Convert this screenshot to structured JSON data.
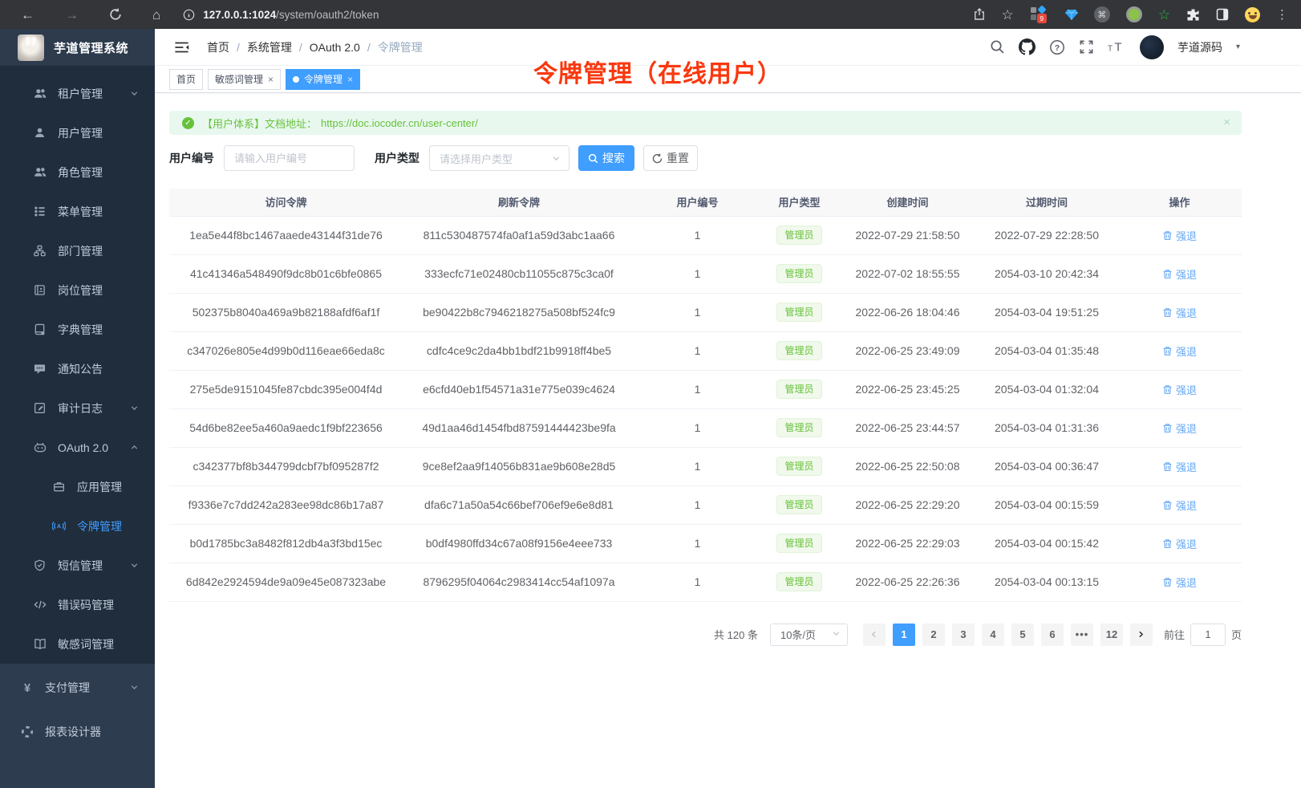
{
  "browser": {
    "url_host": "127.0.0.1:1024",
    "url_path": "/system/oauth2/token",
    "extension_badge": "9"
  },
  "app": {
    "title": "芋道管理系统"
  },
  "header": {
    "breadcrumb": [
      "首页",
      "系统管理",
      "OAuth 2.0",
      "令牌管理"
    ],
    "username": "芋道源码"
  },
  "annotation": {
    "text": "令牌管理（在线用户）",
    "color": "#f9380f"
  },
  "colors": {
    "accent": "#409eff",
    "success": "#67c23a",
    "sidebar_bg": "#1f2d3d",
    "annotation_red": "#f9380f"
  },
  "tabs": [
    {
      "label": "首页",
      "closable": false,
      "active": false
    },
    {
      "label": "敏感词管理",
      "closable": true,
      "active": false
    },
    {
      "label": "令牌管理",
      "closable": true,
      "active": true
    }
  ],
  "sidebar": {
    "main_items": [
      {
        "id": "tenant",
        "icon": "users-icon",
        "label": "租户管理",
        "chevron": "down"
      },
      {
        "id": "user",
        "icon": "user-icon",
        "label": "用户管理"
      },
      {
        "id": "role",
        "icon": "users-icon",
        "label": "角色管理"
      },
      {
        "id": "menu",
        "icon": "menu-tree-icon",
        "label": "菜单管理"
      },
      {
        "id": "dept",
        "icon": "org-chart-icon",
        "label": "部门管理"
      },
      {
        "id": "post",
        "icon": "id-card-icon",
        "label": "岗位管理"
      },
      {
        "id": "dict",
        "icon": "dictionary-icon",
        "label": "字典管理"
      },
      {
        "id": "notice",
        "icon": "comment-icon",
        "label": "通知公告"
      },
      {
        "id": "audit",
        "icon": "edit-log-icon",
        "label": "审计日志",
        "chevron": "down"
      },
      {
        "id": "oauth",
        "icon": "robot-icon",
        "label": "OAuth 2.0",
        "chevron": "up"
      },
      {
        "id": "oauth-app",
        "icon": "briefcase-icon",
        "label": "应用管理",
        "child": true
      },
      {
        "id": "oauth-token",
        "icon": "broadcast-icon",
        "label": "令牌管理",
        "child": true,
        "active": true
      },
      {
        "id": "sms",
        "icon": "shield-check-icon",
        "label": "短信管理",
        "chevron": "down"
      },
      {
        "id": "errcode",
        "icon": "code-icon",
        "label": "错误码管理"
      },
      {
        "id": "sensitive",
        "icon": "open-book-icon",
        "label": "敏感词管理"
      }
    ],
    "bottom_items": [
      {
        "id": "pay",
        "icon": "yen-icon",
        "label": "支付管理",
        "chevron": "down"
      },
      {
        "id": "report",
        "icon": "segmented-ring-icon",
        "label": "报表设计器"
      }
    ]
  },
  "alert": {
    "prefix": "【用户体系】文档地址：",
    "link": "https://doc.iocoder.cn/user-center/"
  },
  "search": {
    "user_id_label": "用户编号",
    "user_id_placeholder": "请输入用户编号",
    "user_type_label": "用户类型",
    "user_type_placeholder": "请选择用户类型",
    "search_label": "搜索",
    "reset_label": "重置"
  },
  "table": {
    "columns": [
      "访问令牌",
      "刷新令牌",
      "用户编号",
      "用户类型",
      "创建时间",
      "过期时间",
      "操作"
    ],
    "action_label": "强退",
    "rows": [
      {
        "access": "1ea5e44f8bc1467aaede43144f31de76",
        "refresh": "811c530487574fa0af1a59d3abc1aa66",
        "user_id": "1",
        "user_type": "管理员",
        "created": "2022-07-29 21:58:50",
        "expires": "2022-07-29 22:28:50"
      },
      {
        "access": "41c41346a548490f9dc8b01c6bfe0865",
        "refresh": "333ecfc71e02480cb11055c875c3ca0f",
        "user_id": "1",
        "user_type": "管理员",
        "created": "2022-07-02 18:55:55",
        "expires": "2054-03-10 20:42:34"
      },
      {
        "access": "502375b8040a469a9b82188afdf6af1f",
        "refresh": "be90422b8c7946218275a508bf524fc9",
        "user_id": "1",
        "user_type": "管理员",
        "created": "2022-06-26 18:04:46",
        "expires": "2054-03-04 19:51:25"
      },
      {
        "access": "c347026e805e4d99b0d116eae66eda8c",
        "refresh": "cdfc4ce9c2da4bb1bdf21b9918ff4be5",
        "user_id": "1",
        "user_type": "管理员",
        "created": "2022-06-25 23:49:09",
        "expires": "2054-03-04 01:35:48"
      },
      {
        "access": "275e5de9151045fe87cbdc395e004f4d",
        "refresh": "e6cfd40eb1f54571a31e775e039c4624",
        "user_id": "1",
        "user_type": "管理员",
        "created": "2022-06-25 23:45:25",
        "expires": "2054-03-04 01:32:04"
      },
      {
        "access": "54d6be82ee5a460a9aedc1f9bf223656",
        "refresh": "49d1aa46d1454fbd87591444423be9fa",
        "user_id": "1",
        "user_type": "管理员",
        "created": "2022-06-25 23:44:57",
        "expires": "2054-03-04 01:31:36"
      },
      {
        "access": "c342377bf8b344799dcbf7bf095287f2",
        "refresh": "9ce8ef2aa9f14056b831ae9b608e28d5",
        "user_id": "1",
        "user_type": "管理员",
        "created": "2022-06-25 22:50:08",
        "expires": "2054-03-04 00:36:47"
      },
      {
        "access": "f9336e7c7dd242a283ee98dc86b17a87",
        "refresh": "dfa6c71a50a54c66bef706ef9e6e8d81",
        "user_id": "1",
        "user_type": "管理员",
        "created": "2022-06-25 22:29:20",
        "expires": "2054-03-04 00:15:59"
      },
      {
        "access": "b0d1785bc3a8482f812db4a3f3bd15ec",
        "refresh": "b0df4980ffd34c67a08f9156e4eee733",
        "user_id": "1",
        "user_type": "管理员",
        "created": "2022-06-25 22:29:03",
        "expires": "2054-03-04 00:15:42"
      },
      {
        "access": "6d842e2924594de9a09e45e087323abe",
        "refresh": "8796295f04064c2983414cc54af1097a",
        "user_id": "1",
        "user_type": "管理员",
        "created": "2022-06-25 22:26:36",
        "expires": "2054-03-04 00:13:15"
      }
    ]
  },
  "pagination": {
    "total_label": "共 120 条",
    "page_size": "10条/页",
    "pages": [
      {
        "label": "1",
        "active": true
      },
      {
        "label": "2"
      },
      {
        "label": "3"
      },
      {
        "label": "4"
      },
      {
        "label": "5"
      },
      {
        "label": "6"
      },
      {
        "label": "•••",
        "more": true
      },
      {
        "label": "12"
      }
    ],
    "goto_label": "前往",
    "goto_value": "1",
    "goto_suffix": "页"
  }
}
